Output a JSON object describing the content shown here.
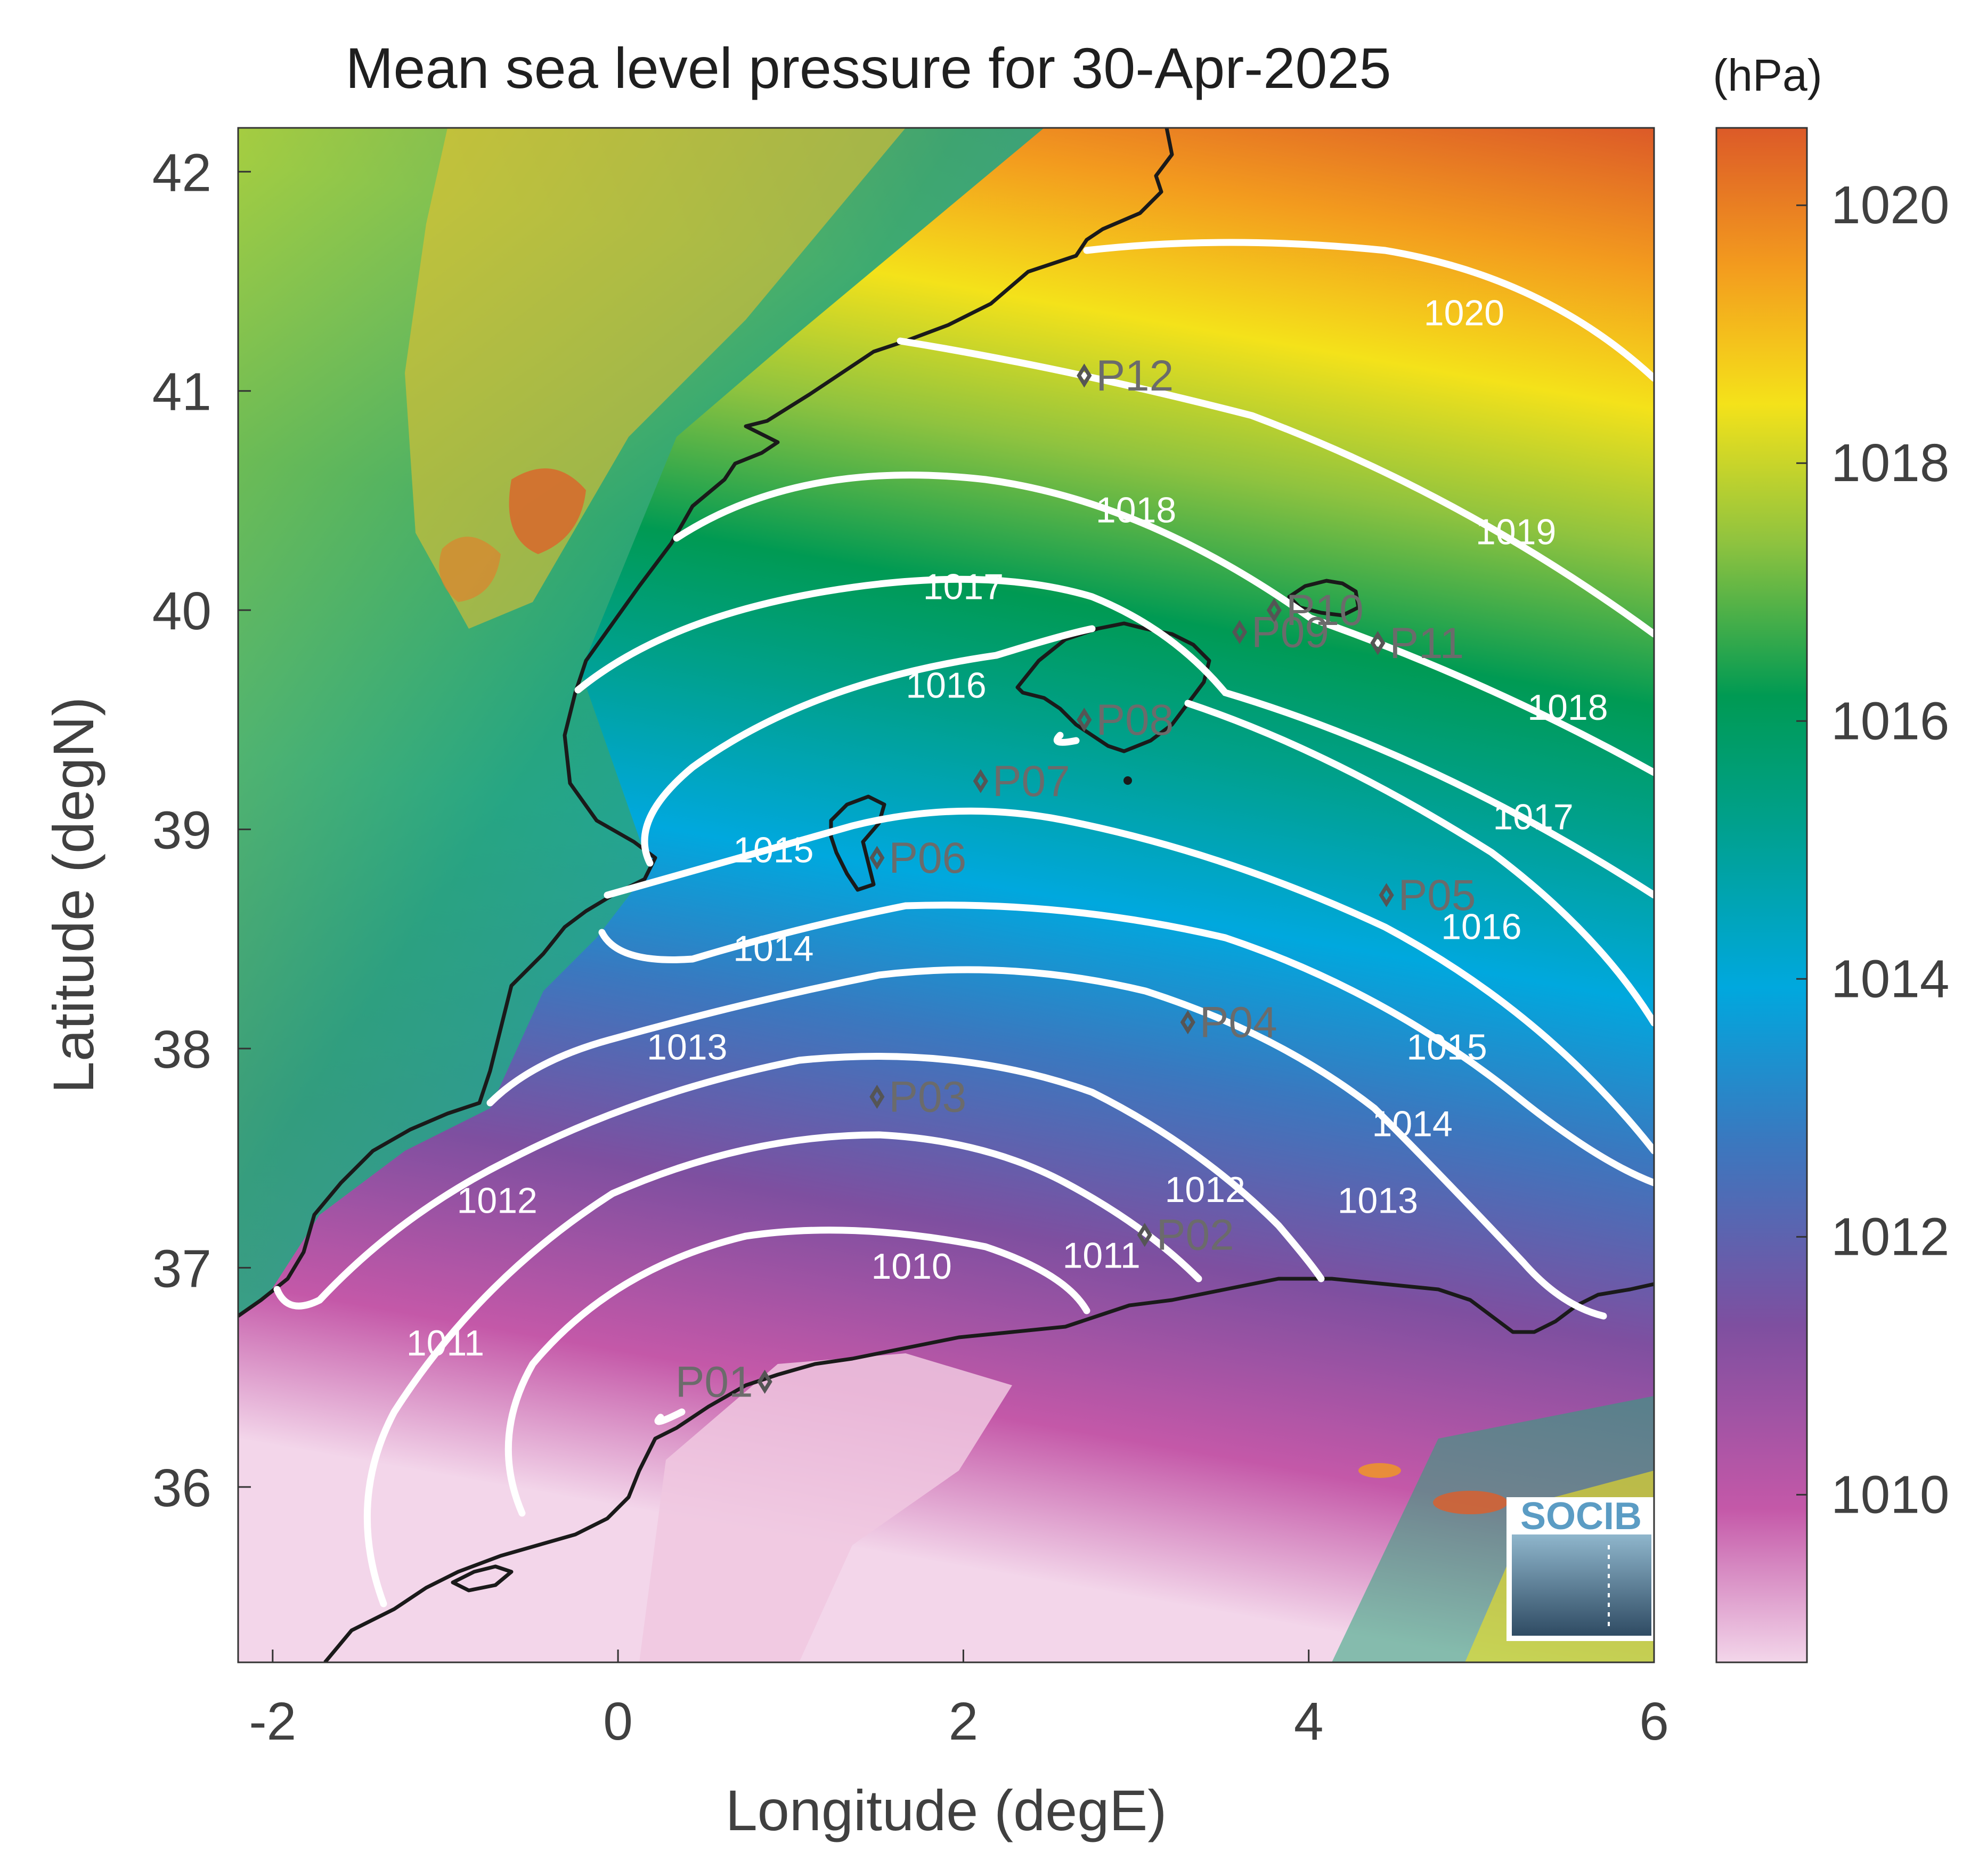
{
  "title": "Mean sea level pressure for 30-Apr-2025",
  "units_label": "(hPa)",
  "xlabel": "Longitude (degE)",
  "ylabel": "Latitude (degN)",
  "x_range": [
    -2.2,
    6.0
  ],
  "y_range": [
    35.2,
    42.2
  ],
  "x_ticks": [
    "-2",
    "0",
    "2",
    "4",
    "6"
  ],
  "y_ticks": [
    "42",
    "41",
    "40",
    "39",
    "38",
    "37",
    "36"
  ],
  "colorbar": {
    "range": [
      1008.7,
      1020.6
    ],
    "ticks": [
      "1020",
      "1018",
      "1016",
      "1014",
      "1012",
      "1010"
    ]
  },
  "contour_labels": [
    {
      "text": "1020",
      "lon": 4.9,
      "lat": 41.3
    },
    {
      "text": "1019",
      "lon": 5.2,
      "lat": 40.3
    },
    {
      "text": "1018",
      "lon": 3.0,
      "lat": 40.4
    },
    {
      "text": "1018",
      "lon": 5.5,
      "lat": 39.5
    },
    {
      "text": "1017",
      "lon": 2.0,
      "lat": 40.05
    },
    {
      "text": "1017",
      "lon": 5.3,
      "lat": 39.0
    },
    {
      "text": "1016",
      "lon": 1.9,
      "lat": 39.6
    },
    {
      "text": "1016",
      "lon": 5.0,
      "lat": 38.5
    },
    {
      "text": "1015",
      "lon": 0.9,
      "lat": 38.85
    },
    {
      "text": "1015",
      "lon": 4.8,
      "lat": 37.95
    },
    {
      "text": "1014",
      "lon": 0.9,
      "lat": 38.4
    },
    {
      "text": "1014",
      "lon": 4.6,
      "lat": 37.6
    },
    {
      "text": "1013",
      "lon": 0.4,
      "lat": 37.95
    },
    {
      "text": "1013",
      "lon": 4.4,
      "lat": 37.25
    },
    {
      "text": "1012",
      "lon": -0.7,
      "lat": 37.25
    },
    {
      "text": "1012",
      "lon": 3.4,
      "lat": 37.3
    },
    {
      "text": "1011",
      "lon": -1.0,
      "lat": 36.6
    },
    {
      "text": "1011",
      "lon": 2.8,
      "lat": 37.0
    },
    {
      "text": "1010",
      "lon": 1.7,
      "lat": 36.95
    }
  ],
  "stations": [
    {
      "name": "P01",
      "lon": 0.85,
      "lat": 36.48
    },
    {
      "name": "P02",
      "lon": 3.05,
      "lat": 37.15
    },
    {
      "name": "P03",
      "lon": 1.5,
      "lat": 37.78
    },
    {
      "name": "P04",
      "lon": 3.3,
      "lat": 38.12
    },
    {
      "name": "P05",
      "lon": 4.45,
      "lat": 38.7
    },
    {
      "name": "P06",
      "lon": 1.5,
      "lat": 38.87
    },
    {
      "name": "P07",
      "lon": 2.1,
      "lat": 39.22
    },
    {
      "name": "P08",
      "lon": 2.7,
      "lat": 39.5
    },
    {
      "name": "P09",
      "lon": 3.6,
      "lat": 39.9
    },
    {
      "name": "P10",
      "lon": 3.8,
      "lat": 40.0
    },
    {
      "name": "P11",
      "lon": 4.4,
      "lat": 39.85
    },
    {
      "name": "P12",
      "lon": 2.7,
      "lat": 41.07
    }
  ],
  "logo_text": "SOCIB",
  "colors": {
    "pressure_high": "#dc5a28",
    "pressure_mid": "#009a53",
    "pressure_low": "#e9c5df",
    "contour": "#ffffff",
    "coastline": "#1a1a1a",
    "logo": "#5b9cc4"
  }
}
